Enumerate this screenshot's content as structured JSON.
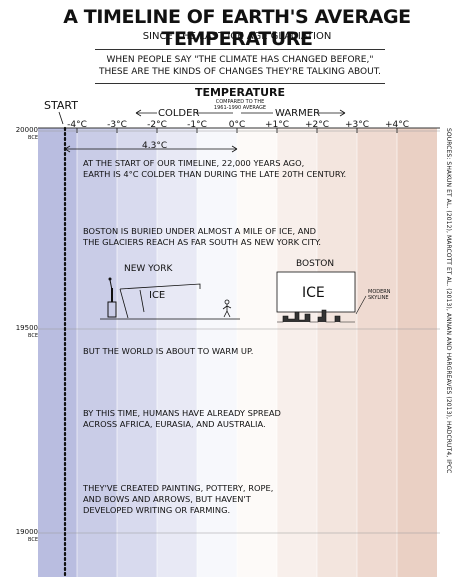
{
  "header": {
    "title": "A Timeline of Earth's Average Temperature",
    "subtitle": "Since the Last Ice Age Glaciation",
    "intro_line1": "When people say \"the climate has changed before,\"",
    "intro_line2": "these are the kinds of changes they're talking about."
  },
  "scale": {
    "heading": "Temperature",
    "baseline_note_line1": "Compared to the",
    "baseline_note_line2": "1961-1990 average",
    "colder_label": "Colder",
    "warmer_label": "Warmer",
    "start_label": "Start",
    "ticks": [
      {
        "value": -4,
        "label": "-4°C"
      },
      {
        "value": -3,
        "label": "-3°C"
      },
      {
        "value": -2,
        "label": "-2°C"
      },
      {
        "value": -1,
        "label": "-1°C"
      },
      {
        "value": 0,
        "label": "0°C"
      },
      {
        "value": 1,
        "label": "+1°C"
      },
      {
        "value": 2,
        "label": "+2°C"
      },
      {
        "value": 3,
        "label": "+3°C"
      },
      {
        "value": 4,
        "label": "+4°C"
      }
    ],
    "span_label": "4.3°C"
  },
  "years": [
    {
      "year": "20000",
      "era": "BCE"
    },
    {
      "year": "19500",
      "era": "BCE"
    },
    {
      "year": "19000",
      "era": "BCE"
    }
  ],
  "notes": [
    {
      "line1": "At the start of our timeline, 22,000 years ago,",
      "line2": "Earth is 4°C colder than during the late 20th century.",
      "line3": ""
    },
    {
      "line1": "Boston is buried under almost a mile of ice, and",
      "line2": "the glaciers reach as far south as New York City.",
      "line3": ""
    },
    {
      "line1": "But the world is about to warm up.",
      "line2": "",
      "line3": ""
    },
    {
      "line1": "By this time, humans have already spread",
      "line2": "across Africa, Eurasia, and Australia.",
      "line3": ""
    },
    {
      "line1": "They've created painting, pottery, rope,",
      "line2": "and bows and arrows, but haven't",
      "line3": "developed writing or farming."
    }
  ],
  "illustrations": {
    "ny_label": "New York",
    "boston_label": "Boston",
    "ice_left": "Ice",
    "ice_right": "Ice",
    "skyline_line1": "Modern",
    "skyline_line2": "skyline"
  },
  "sources": "Sources: Shakun et al. (2012), Marcott et al. (2013), Annan and Hargreaves (2013), HadCRUT4, IPCC",
  "colors": {
    "cold_band": "#b9bde0",
    "neutral": "#ffffff",
    "warm_band": "#ead0c4",
    "line": "#111111"
  },
  "temperature_series": {
    "start_value_c": -4.3,
    "trend": "roughly constant near -4.3°C from 20000 BCE to 19000 BCE"
  }
}
